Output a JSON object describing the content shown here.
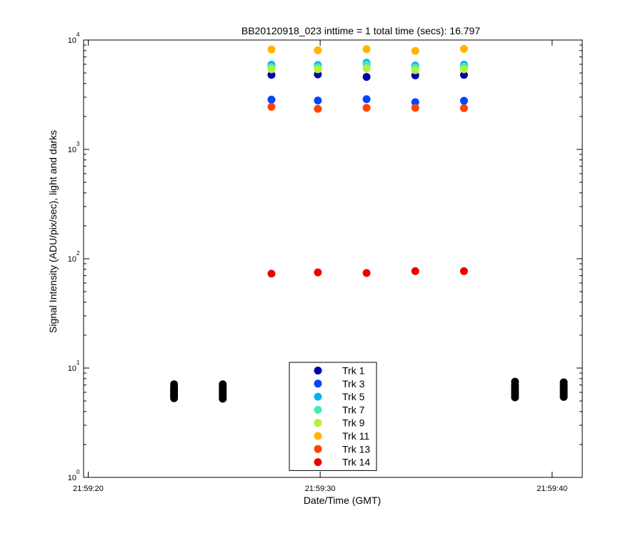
{
  "chart_data": {
    "type": "scatter",
    "title": "BB20120918_023 inttime = 1 total time (secs): 16.797",
    "xlabel": "Date/Time (GMT)",
    "ylabel": "Signal Intensity (ADU/pix/sec), light and darks",
    "yscale": "log",
    "ylim": [
      1,
      10000
    ],
    "xlim": [
      "21:59:19.8",
      "21:59:41.3"
    ],
    "xticks": [
      "21:59:20",
      "21:59:30",
      "21:59:40"
    ],
    "yticks": [
      {
        "value": 1,
        "base": "10",
        "exp": "0"
      },
      {
        "value": 10,
        "base": "10",
        "exp": "1"
      },
      {
        "value": 100,
        "base": "10",
        "exp": "2"
      },
      {
        "value": 1000,
        "base": "10",
        "exp": "3"
      },
      {
        "value": 10000,
        "base": "10",
        "exp": "4"
      }
    ],
    "grid": false,
    "legend_position": "bottom-center",
    "light_times": [
      "21:59:27.9",
      "21:59:29.9",
      "21:59:32.0",
      "21:59:34.1",
      "21:59:36.2"
    ],
    "series": [
      {
        "name": "Trk 1",
        "color": "#0000aa",
        "values": [
          4800,
          4850,
          4600,
          4750,
          4800
        ]
      },
      {
        "name": "Trk 3",
        "color": "#0044ff",
        "values": [
          2850,
          2800,
          2880,
          2700,
          2780
        ]
      },
      {
        "name": "Trk 5",
        "color": "#00b4f0",
        "values": [
          5950,
          5900,
          6200,
          5850,
          5950
        ]
      },
      {
        "name": "Trk 7",
        "color": "#3ceeb4",
        "values": [
          5650,
          5650,
          5950,
          5600,
          5700
        ]
      },
      {
        "name": "Trk 9",
        "color": "#b4f03c",
        "values": [
          5400,
          5400,
          5500,
          5300,
          5400
        ]
      },
      {
        "name": "Trk 11",
        "color": "#ffb400",
        "values": [
          8200,
          8050,
          8250,
          7950,
          8300
        ]
      },
      {
        "name": "Trk 13",
        "color": "#ff4400",
        "values": [
          2450,
          2350,
          2400,
          2400,
          2380
        ]
      },
      {
        "name": "Trk 14",
        "color": "#ee0000",
        "values": [
          73,
          75,
          74,
          77,
          77
        ]
      }
    ],
    "darks": {
      "color": "#000000",
      "groups": [
        {
          "time": "21:59:23.7",
          "values": [
            5.3,
            5.55,
            5.8,
            6.1,
            6.35,
            6.65,
            7.1
          ]
        },
        {
          "time": "21:59:25.8",
          "values": [
            5.25,
            5.5,
            5.8,
            6.1,
            6.4,
            6.7,
            7.1
          ]
        },
        {
          "time": "21:59:38.4",
          "values": [
            5.4,
            5.7,
            6.0,
            6.3,
            6.6,
            7.0,
            7.5
          ]
        },
        {
          "time": "21:59:40.5",
          "values": [
            5.45,
            5.75,
            6.05,
            6.35,
            6.65,
            7.0,
            7.4
          ]
        }
      ]
    }
  }
}
